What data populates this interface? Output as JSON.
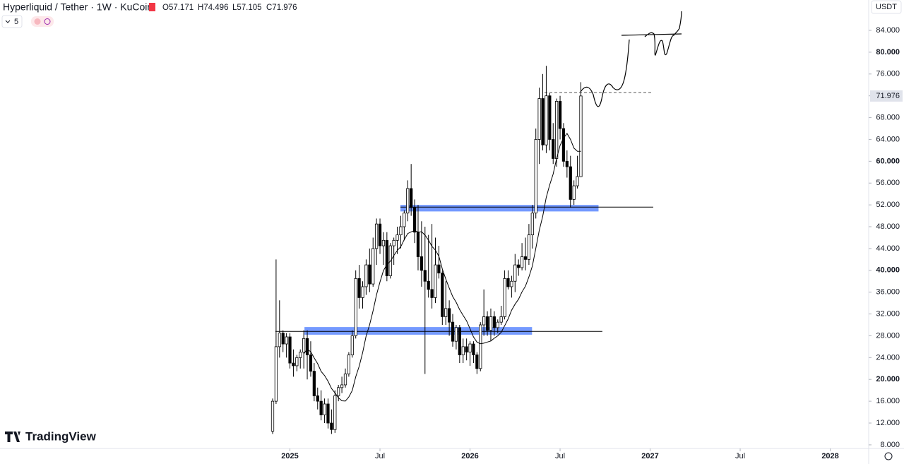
{
  "chart_data": {
    "type": "candlestick",
    "title": "Hyperliquid / Tether · 1W · KuCoin",
    "ohlc_legend": [
      "O57.171",
      "H74.496",
      "L57.105",
      "C71.976"
    ],
    "indicator_count": "5",
    "currency": "USDT",
    "brand": "TradingView",
    "x": [
      0,
      1,
      2,
      3,
      4,
      5,
      6,
      7,
      8,
      9,
      10,
      11,
      12,
      13,
      14,
      15,
      16,
      17,
      18,
      19,
      20,
      21,
      22,
      23,
      24,
      25,
      26,
      27,
      28,
      29,
      30,
      31,
      32,
      33,
      34,
      35,
      36,
      37,
      38,
      39,
      40,
      41,
      42,
      43,
      44,
      45,
      46,
      47,
      48,
      49,
      50,
      51,
      52,
      53,
      54,
      55,
      56,
      57,
      58,
      59,
      60,
      61,
      62,
      63,
      64,
      65,
      66,
      67,
      68,
      69,
      70,
      71,
      72,
      73,
      74,
      75,
      76,
      77,
      78,
      79,
      80,
      81,
      82,
      83,
      84,
      85,
      86,
      87,
      88,
      89
    ],
    "open": [
      10.5,
      16,
      26,
      28.5,
      26.5,
      27.8,
      23,
      22.5,
      24,
      25,
      27.5,
      24.5,
      21.5,
      17,
      16,
      13.5,
      15.5,
      12,
      10.8,
      17,
      18.5,
      19,
      21,
      24.5,
      28,
      38.5,
      35,
      37,
      41,
      37.5,
      44,
      48.5,
      44.5,
      45.5,
      39,
      44.5,
      45.5,
      46.5,
      48,
      50.5,
      55,
      51.5,
      47,
      42.5,
      40,
      38,
      36.5,
      35,
      41,
      39.5,
      31.5,
      33,
      30.5,
      27,
      29.5,
      24.5,
      26,
      25,
      26.5,
      24.5,
      22,
      30,
      31.5,
      29,
      31.5,
      29.5,
      30.5,
      31.5,
      38.5,
      37,
      38,
      41,
      40.5,
      42.5,
      42,
      46.5,
      50.5,
      64,
      71.5,
      63,
      72,
      64,
      60.5,
      71,
      66,
      60,
      59,
      53,
      55.5,
      57.171
    ],
    "high": [
      16.5,
      42,
      34.5,
      29,
      28.5,
      28.5,
      25.5,
      24.5,
      25.5,
      29,
      29,
      27,
      23,
      18.5,
      18,
      16.5,
      16.5,
      14.5,
      18,
      19,
      20.5,
      22,
      25,
      29,
      40,
      41,
      38,
      42,
      44,
      46,
      49.5,
      49.5,
      47,
      47,
      45,
      46,
      48,
      50,
      51,
      56.5,
      59.5,
      53,
      52,
      49,
      48,
      46.5,
      48.5,
      46,
      44.5,
      40,
      38,
      34.5,
      32,
      30,
      30,
      27.5,
      27.5,
      27,
      27,
      25,
      30.5,
      36.5,
      32.5,
      33,
      32.5,
      31,
      33.5,
      40,
      40,
      39,
      43,
      42,
      45,
      46,
      48.5,
      52,
      66,
      73.5,
      76,
      77.5,
      72.5,
      67,
      71.5,
      72,
      67,
      62,
      61,
      56.5,
      61,
      74.496
    ],
    "low": [
      10,
      15.5,
      24,
      25,
      24,
      22,
      20.5,
      21.5,
      22,
      22,
      20,
      20.5,
      16,
      14.5,
      12.5,
      12,
      11,
      10,
      10.2,
      16,
      17.5,
      18.5,
      20.5,
      24,
      27.5,
      33,
      33,
      35.5,
      36,
      37,
      41,
      43,
      41,
      38,
      38.5,
      41,
      43,
      44,
      45.5,
      49,
      50,
      45,
      40,
      37,
      21,
      35,
      33,
      34,
      38.5,
      30,
      30,
      28,
      26,
      25.5,
      23,
      23,
      23.5,
      22.5,
      23,
      21,
      21.5,
      28,
      28,
      27,
      28,
      28.5,
      30,
      31,
      36.5,
      35,
      36,
      39,
      40,
      40,
      41,
      44,
      49.5,
      59.5,
      62,
      61.5,
      62,
      59.5,
      59,
      64,
      59,
      57,
      51.5,
      52,
      55,
      57.105
    ],
    "close": [
      16,
      26,
      28.5,
      26.5,
      27.8,
      23,
      22.5,
      24,
      25,
      27.5,
      24.5,
      21.5,
      17,
      16,
      13.5,
      15.5,
      12,
      10.8,
      17,
      18.5,
      19,
      21,
      24.5,
      28,
      38.5,
      35,
      37,
      41,
      37.5,
      44,
      48.5,
      44.5,
      45.5,
      39,
      44.5,
      45.5,
      46.5,
      48,
      50.5,
      55,
      51.5,
      47,
      42.5,
      40,
      38,
      36.5,
      35,
      41,
      39.5,
      31.5,
      33,
      30.5,
      27,
      29.5,
      24.5,
      26,
      25,
      26.5,
      24.5,
      22,
      30,
      31.5,
      29,
      31.5,
      29.5,
      30.5,
      31.5,
      38.5,
      37,
      38,
      41,
      40.5,
      42.5,
      42,
      46.5,
      50.5,
      64,
      71.5,
      63,
      72,
      64,
      60.5,
      71,
      66,
      60,
      59,
      53,
      55.5,
      57.2,
      71.976
    ],
    "up_color": "#ffffff",
    "down_color": "#000000",
    "edge_color": "#000000",
    "ma_period": 10,
    "ma_color": "#000000",
    "zones": [
      {
        "x": [
          36.9,
          94.1
        ],
        "y": [
          50.8,
          52.0
        ],
        "color": "#2962ff"
      },
      {
        "x": [
          9.2,
          74.9
        ],
        "y": [
          28.2,
          29.6
        ],
        "color": "#2962ff"
      }
    ],
    "levels": [
      {
        "value": 51.6,
        "x": [
          36.9,
          109.9
        ]
      },
      {
        "value": 28.8,
        "x": [
          0.8,
          95.2
        ]
      }
    ],
    "dashed_levels": [
      {
        "value": 72.6,
        "x": [
          78.5,
          109.9
        ]
      }
    ],
    "xlim": [
      -78.71,
      172.1
    ],
    "xticks": [
      {
        "value": 5,
        "label": "2025"
      },
      {
        "value": 31,
        "label": "Jul"
      },
      {
        "value": 57,
        "label": "2026"
      },
      {
        "value": 83,
        "label": "Jul"
      },
      {
        "value": 109,
        "label": "2027"
      },
      {
        "value": 135,
        "label": "Jul"
      },
      {
        "value": 161,
        "label": "2028"
      }
    ],
    "ylim": [
      7.34,
      89.57
    ],
    "yticks": [
      {
        "value": 8,
        "label": "8.000"
      },
      {
        "value": 12,
        "label": "12.000"
      },
      {
        "value": 16,
        "label": "16.000"
      },
      {
        "value": 20,
        "label": "20.000"
      },
      {
        "value": 24,
        "label": "24.000"
      },
      {
        "value": 28,
        "label": "28.000"
      },
      {
        "value": 32,
        "label": "32.000"
      },
      {
        "value": 36,
        "label": "36.000"
      },
      {
        "value": 40,
        "label": "40.000"
      },
      {
        "value": 44,
        "label": "44.000"
      },
      {
        "value": 48,
        "label": "48.000"
      },
      {
        "value": 52,
        "label": "52.000"
      },
      {
        "value": 56,
        "label": "56.000"
      },
      {
        "value": 60,
        "label": "60.000"
      },
      {
        "value": 64,
        "label": "64.000"
      },
      {
        "value": 68,
        "label": "68.000"
      },
      {
        "value": 72,
        "label": "72.000"
      },
      {
        "value": 76,
        "label": "76.000"
      },
      {
        "value": 80,
        "label": "80.000"
      },
      {
        "value": 84,
        "label": "84.000"
      }
    ],
    "grid": false
  }
}
